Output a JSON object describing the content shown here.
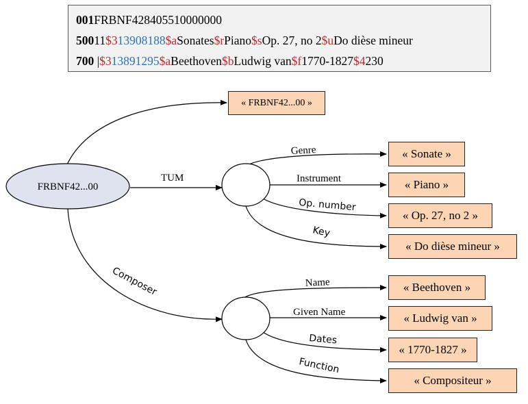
{
  "record": {
    "line1": {
      "tag": "001",
      "value": "FRBNF428405510000000"
    },
    "line2": {
      "tag": "500",
      "ind": "11",
      "s3": "$3",
      "s3_val": "13908188",
      "sa": "$a",
      "sa_val": "Sonates",
      "sr": "$r",
      "sr_val": "Piano",
      "ss": "$s",
      "ss_val": "Op. 27, no 2",
      "su": "$u",
      "su_val": "Do dièse mineur"
    },
    "line3": {
      "tag": "700",
      "ind": " |",
      "s3": "$3",
      "s3_val": "13891295",
      "sa": "$a",
      "sa_val": "Beethoven",
      "sb": "$b",
      "sb_val": "Ludwig van",
      "sf": "$f",
      "sf_val": "1770-1827",
      "s4": "$4",
      "s4_val": "230"
    }
  },
  "diagram": {
    "root_node": "FRBNF42...00",
    "uri_literal": "« FRBNF42...00 »",
    "tum_label": "TUM",
    "composer_label": "Composer",
    "work_edges": {
      "genre": "Genre",
      "instrument": "Instrument",
      "op_number": "Op. number",
      "key": "Key"
    },
    "work_values": {
      "genre": "« Sonate »",
      "instrument": "« Piano »",
      "op_number": "« Op. 27, no 2 »",
      "key": "« Do dièse mineur »"
    },
    "person_edges": {
      "name": "Name",
      "given_name": "Given Name",
      "dates": "Dates",
      "function": "Function"
    },
    "person_values": {
      "name": "« Beethoven »",
      "given_name": "« Ludwig van »",
      "dates": "« 1770-1827 »",
      "function": "« Compositeur »"
    },
    "colors": {
      "literal_fill": "#fcd5b5",
      "root_fill": "#dfe3ef",
      "subfield_red": "#c0282d",
      "subfield_blue": "#2b74b6"
    }
  }
}
